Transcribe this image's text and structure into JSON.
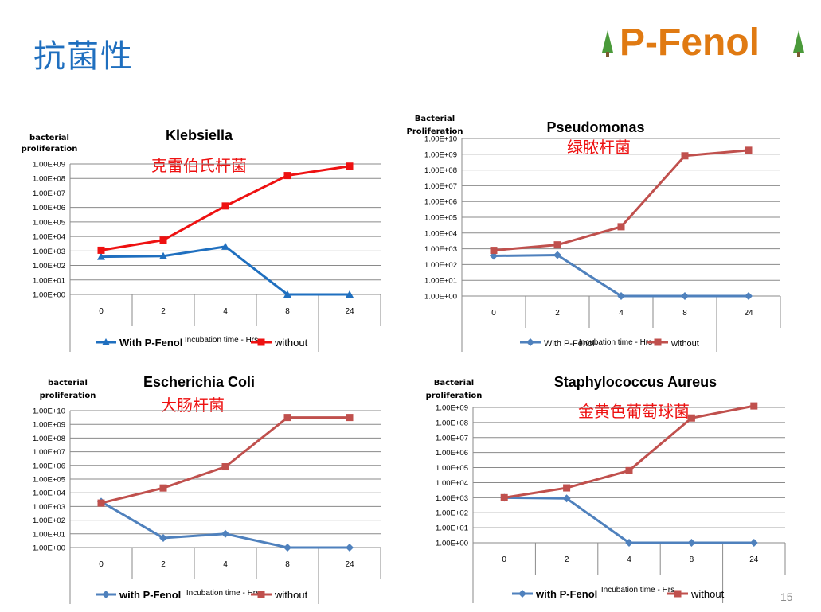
{
  "slide": {
    "title": "抗菌性",
    "brand": "P-Fenol",
    "page_number": "15"
  },
  "chart_data": [
    {
      "id": "klebsiella",
      "type": "line",
      "title": "Klebsiella",
      "subtitle": "克雷伯氏杆菌",
      "ylabel": "bacterial proliferation",
      "xlabel": "Incubation time - Hrs",
      "categories": [
        "0",
        "2",
        "4",
        "8",
        "24"
      ],
      "y_scale": "log",
      "ylim": [
        0,
        9
      ],
      "y_ticks": [
        "1.00E+00",
        "1.00E+01",
        "1.00E+02",
        "1.00E+03",
        "1.00E+04",
        "1.00E+05",
        "1.00E+06",
        "1.00E+07",
        "1.00E+08",
        "1.00E+09"
      ],
      "series": [
        {
          "name": "With P-Fenol",
          "color": "#1f6fbf",
          "marker": "triangle",
          "values": [
            2.6,
            2.65,
            3.3,
            0,
            0
          ]
        },
        {
          "name": "without",
          "color": "#ee1111",
          "marker": "square",
          "values": [
            3.05,
            3.75,
            6.1,
            8.2,
            8.85
          ]
        }
      ],
      "legend": "bottom",
      "grid": true
    },
    {
      "id": "pseudomonas",
      "type": "line",
      "title": "Pseudomonas",
      "subtitle": "绿脓杆菌",
      "ylabel": "Bacterial Proliferation",
      "xlabel": "Incubation time - Hrs",
      "categories": [
        "0",
        "2",
        "4",
        "8",
        "24"
      ],
      "y_scale": "log",
      "ylim": [
        0,
        10
      ],
      "y_ticks": [
        "1.00E+00",
        "1.00E+01",
        "1.00E+02",
        "1.00E+03",
        "1.00E+04",
        "1.00E+05",
        "1.00E+06",
        "1.00E+07",
        "1.00E+08",
        "1.00E+09",
        "1.00E+10"
      ],
      "series": [
        {
          "name": "With P-Fenol",
          "color": "#4f81bd",
          "marker": "diamond",
          "values": [
            2.55,
            2.6,
            0,
            0,
            0
          ]
        },
        {
          "name": "without",
          "color": "#c0504d",
          "marker": "square",
          "values": [
            2.9,
            3.25,
            4.4,
            8.9,
            9.25
          ]
        }
      ],
      "legend": "bottom",
      "grid": true
    },
    {
      "id": "escherichia-coli",
      "type": "line",
      "title": "Escherichia Coli",
      "subtitle": "大肠杆菌",
      "ylabel": "bacterial proliferation",
      "xlabel": "Incubation time - Hrs",
      "categories": [
        "0",
        "2",
        "4",
        "8",
        "24"
      ],
      "y_scale": "log",
      "ylim": [
        0,
        10
      ],
      "y_ticks": [
        "1.00E+00",
        "1.00E+01",
        "1.00E+02",
        "1.00E+03",
        "1.00E+04",
        "1.00E+05",
        "1.00E+06",
        "1.00E+07",
        "1.00E+08",
        "1.00E+09",
        "1.00E+10"
      ],
      "series": [
        {
          "name": "with P-Fenol",
          "color": "#4f81bd",
          "marker": "diamond",
          "values": [
            3.35,
            0.7,
            1.0,
            0,
            0
          ]
        },
        {
          "name": "without",
          "color": "#c0504d",
          "marker": "square",
          "values": [
            3.25,
            4.35,
            5.9,
            9.5,
            9.5
          ]
        }
      ],
      "legend": "bottom",
      "grid": true
    },
    {
      "id": "staphylococcus-aureus",
      "type": "line",
      "title": "Staphylococcus Aureus",
      "subtitle": "金黄色葡萄球菌",
      "ylabel": "Bacterial proliferation",
      "xlabel": "Incubation time - Hrs",
      "categories": [
        "0",
        "2",
        "4",
        "8",
        "24"
      ],
      "y_scale": "log",
      "ylim": [
        0,
        9
      ],
      "y_ticks": [
        "1.00E+00",
        "1.00E+01",
        "1.00E+02",
        "1.00E+03",
        "1.00E+04",
        "1.00E+05",
        "1.00E+06",
        "1.00E+07",
        "1.00E+08",
        "1.00E+09"
      ],
      "series": [
        {
          "name": "with P-Fenol",
          "color": "#4f81bd",
          "marker": "diamond",
          "values": [
            3.0,
            2.95,
            0,
            0,
            0
          ]
        },
        {
          "name": "without",
          "color": "#c0504d",
          "marker": "square",
          "values": [
            3.0,
            3.65,
            4.8,
            8.3,
            9.1
          ]
        }
      ],
      "legend": "bottom",
      "grid": true
    }
  ]
}
